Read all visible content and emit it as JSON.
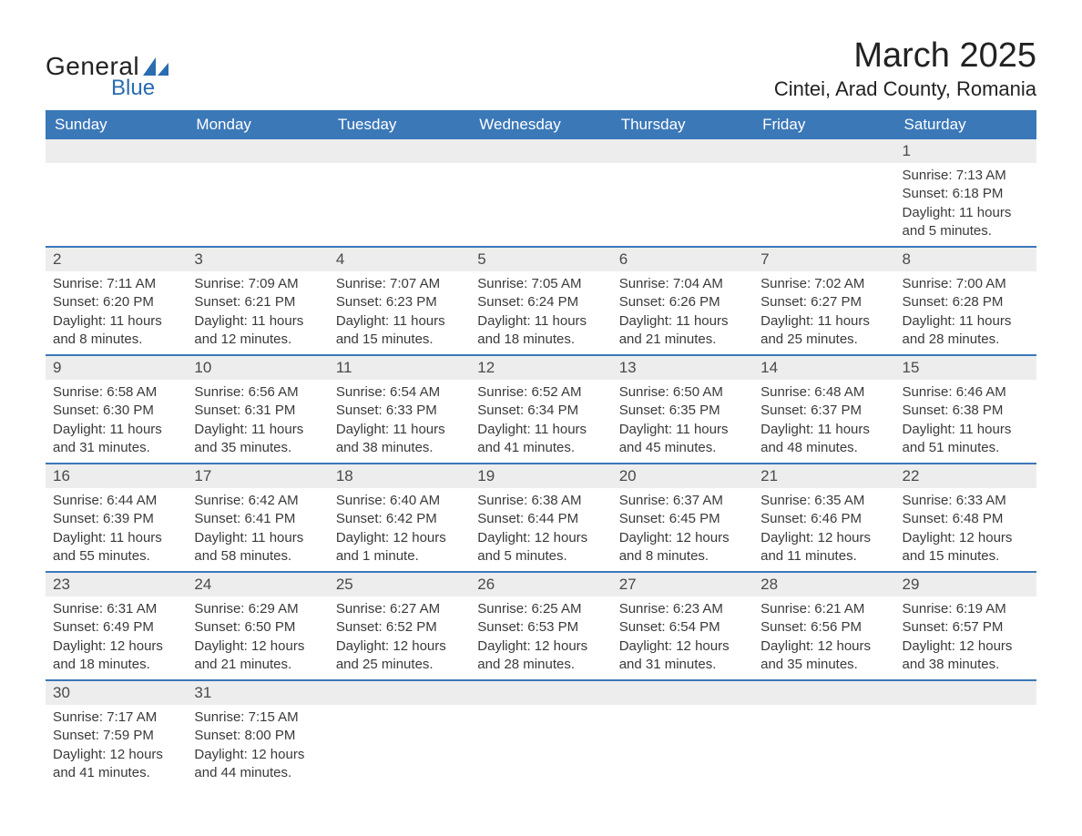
{
  "logo": {
    "text_top": "General",
    "text_bottom": "Blue",
    "icon_color": "#2a6cb0",
    "text_top_color": "#222222",
    "text_bottom_color": "#2a6cb0"
  },
  "title": "March 2025",
  "location": "Cintei, Arad County, Romania",
  "colors": {
    "header_bg": "#3b78b8",
    "header_text": "#ffffff",
    "daynum_bg": "#ededed",
    "daynum_text": "#4a4a4a",
    "body_text": "#3a3a3a",
    "row_divider": "#3b78b8",
    "page_bg": "#ffffff"
  },
  "weekdays": [
    "Sunday",
    "Monday",
    "Tuesday",
    "Wednesday",
    "Thursday",
    "Friday",
    "Saturday"
  ],
  "weeks": [
    [
      {
        "day": "",
        "sunrise": "",
        "sunset": "",
        "daylight": ""
      },
      {
        "day": "",
        "sunrise": "",
        "sunset": "",
        "daylight": ""
      },
      {
        "day": "",
        "sunrise": "",
        "sunset": "",
        "daylight": ""
      },
      {
        "day": "",
        "sunrise": "",
        "sunset": "",
        "daylight": ""
      },
      {
        "day": "",
        "sunrise": "",
        "sunset": "",
        "daylight": ""
      },
      {
        "day": "",
        "sunrise": "",
        "sunset": "",
        "daylight": ""
      },
      {
        "day": "1",
        "sunrise": "Sunrise: 7:13 AM",
        "sunset": "Sunset: 6:18 PM",
        "daylight": "Daylight: 11 hours and 5 minutes."
      }
    ],
    [
      {
        "day": "2",
        "sunrise": "Sunrise: 7:11 AM",
        "sunset": "Sunset: 6:20 PM",
        "daylight": "Daylight: 11 hours and 8 minutes."
      },
      {
        "day": "3",
        "sunrise": "Sunrise: 7:09 AM",
        "sunset": "Sunset: 6:21 PM",
        "daylight": "Daylight: 11 hours and 12 minutes."
      },
      {
        "day": "4",
        "sunrise": "Sunrise: 7:07 AM",
        "sunset": "Sunset: 6:23 PM",
        "daylight": "Daylight: 11 hours and 15 minutes."
      },
      {
        "day": "5",
        "sunrise": "Sunrise: 7:05 AM",
        "sunset": "Sunset: 6:24 PM",
        "daylight": "Daylight: 11 hours and 18 minutes."
      },
      {
        "day": "6",
        "sunrise": "Sunrise: 7:04 AM",
        "sunset": "Sunset: 6:26 PM",
        "daylight": "Daylight: 11 hours and 21 minutes."
      },
      {
        "day": "7",
        "sunrise": "Sunrise: 7:02 AM",
        "sunset": "Sunset: 6:27 PM",
        "daylight": "Daylight: 11 hours and 25 minutes."
      },
      {
        "day": "8",
        "sunrise": "Sunrise: 7:00 AM",
        "sunset": "Sunset: 6:28 PM",
        "daylight": "Daylight: 11 hours and 28 minutes."
      }
    ],
    [
      {
        "day": "9",
        "sunrise": "Sunrise: 6:58 AM",
        "sunset": "Sunset: 6:30 PM",
        "daylight": "Daylight: 11 hours and 31 minutes."
      },
      {
        "day": "10",
        "sunrise": "Sunrise: 6:56 AM",
        "sunset": "Sunset: 6:31 PM",
        "daylight": "Daylight: 11 hours and 35 minutes."
      },
      {
        "day": "11",
        "sunrise": "Sunrise: 6:54 AM",
        "sunset": "Sunset: 6:33 PM",
        "daylight": "Daylight: 11 hours and 38 minutes."
      },
      {
        "day": "12",
        "sunrise": "Sunrise: 6:52 AM",
        "sunset": "Sunset: 6:34 PM",
        "daylight": "Daylight: 11 hours and 41 minutes."
      },
      {
        "day": "13",
        "sunrise": "Sunrise: 6:50 AM",
        "sunset": "Sunset: 6:35 PM",
        "daylight": "Daylight: 11 hours and 45 minutes."
      },
      {
        "day": "14",
        "sunrise": "Sunrise: 6:48 AM",
        "sunset": "Sunset: 6:37 PM",
        "daylight": "Daylight: 11 hours and 48 minutes."
      },
      {
        "day": "15",
        "sunrise": "Sunrise: 6:46 AM",
        "sunset": "Sunset: 6:38 PM",
        "daylight": "Daylight: 11 hours and 51 minutes."
      }
    ],
    [
      {
        "day": "16",
        "sunrise": "Sunrise: 6:44 AM",
        "sunset": "Sunset: 6:39 PM",
        "daylight": "Daylight: 11 hours and 55 minutes."
      },
      {
        "day": "17",
        "sunrise": "Sunrise: 6:42 AM",
        "sunset": "Sunset: 6:41 PM",
        "daylight": "Daylight: 11 hours and 58 minutes."
      },
      {
        "day": "18",
        "sunrise": "Sunrise: 6:40 AM",
        "sunset": "Sunset: 6:42 PM",
        "daylight": "Daylight: 12 hours and 1 minute."
      },
      {
        "day": "19",
        "sunrise": "Sunrise: 6:38 AM",
        "sunset": "Sunset: 6:44 PM",
        "daylight": "Daylight: 12 hours and 5 minutes."
      },
      {
        "day": "20",
        "sunrise": "Sunrise: 6:37 AM",
        "sunset": "Sunset: 6:45 PM",
        "daylight": "Daylight: 12 hours and 8 minutes."
      },
      {
        "day": "21",
        "sunrise": "Sunrise: 6:35 AM",
        "sunset": "Sunset: 6:46 PM",
        "daylight": "Daylight: 12 hours and 11 minutes."
      },
      {
        "day": "22",
        "sunrise": "Sunrise: 6:33 AM",
        "sunset": "Sunset: 6:48 PM",
        "daylight": "Daylight: 12 hours and 15 minutes."
      }
    ],
    [
      {
        "day": "23",
        "sunrise": "Sunrise: 6:31 AM",
        "sunset": "Sunset: 6:49 PM",
        "daylight": "Daylight: 12 hours and 18 minutes."
      },
      {
        "day": "24",
        "sunrise": "Sunrise: 6:29 AM",
        "sunset": "Sunset: 6:50 PM",
        "daylight": "Daylight: 12 hours and 21 minutes."
      },
      {
        "day": "25",
        "sunrise": "Sunrise: 6:27 AM",
        "sunset": "Sunset: 6:52 PM",
        "daylight": "Daylight: 12 hours and 25 minutes."
      },
      {
        "day": "26",
        "sunrise": "Sunrise: 6:25 AM",
        "sunset": "Sunset: 6:53 PM",
        "daylight": "Daylight: 12 hours and 28 minutes."
      },
      {
        "day": "27",
        "sunrise": "Sunrise: 6:23 AM",
        "sunset": "Sunset: 6:54 PM",
        "daylight": "Daylight: 12 hours and 31 minutes."
      },
      {
        "day": "28",
        "sunrise": "Sunrise: 6:21 AM",
        "sunset": "Sunset: 6:56 PM",
        "daylight": "Daylight: 12 hours and 35 minutes."
      },
      {
        "day": "29",
        "sunrise": "Sunrise: 6:19 AM",
        "sunset": "Sunset: 6:57 PM",
        "daylight": "Daylight: 12 hours and 38 minutes."
      }
    ],
    [
      {
        "day": "30",
        "sunrise": "Sunrise: 7:17 AM",
        "sunset": "Sunset: 7:59 PM",
        "daylight": "Daylight: 12 hours and 41 minutes."
      },
      {
        "day": "31",
        "sunrise": "Sunrise: 7:15 AM",
        "sunset": "Sunset: 8:00 PM",
        "daylight": "Daylight: 12 hours and 44 minutes."
      },
      {
        "day": "",
        "sunrise": "",
        "sunset": "",
        "daylight": ""
      },
      {
        "day": "",
        "sunrise": "",
        "sunset": "",
        "daylight": ""
      },
      {
        "day": "",
        "sunrise": "",
        "sunset": "",
        "daylight": ""
      },
      {
        "day": "",
        "sunrise": "",
        "sunset": "",
        "daylight": ""
      },
      {
        "day": "",
        "sunrise": "",
        "sunset": "",
        "daylight": ""
      }
    ]
  ]
}
